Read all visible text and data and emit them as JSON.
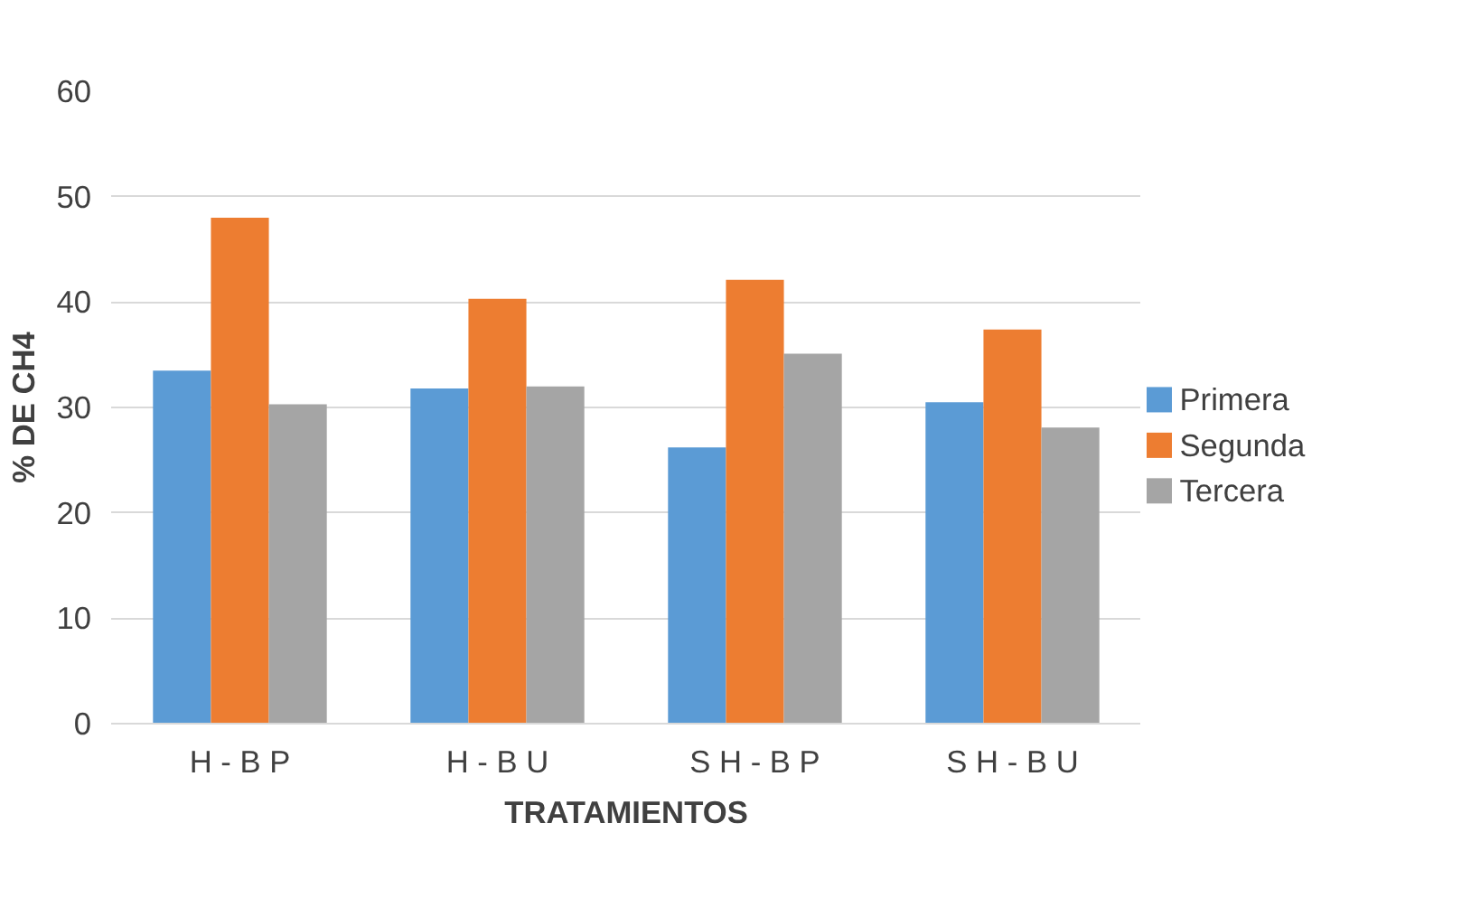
{
  "chart_data": {
    "type": "bar",
    "xlabel": "TRATAMIENTOS",
    "ylabel": "% DE CH4",
    "categories": [
      "H - B P",
      "H - B U",
      "S H - B P",
      "S H - B U"
    ],
    "series": [
      {
        "name": "Primera",
        "color": "#5b9bd5",
        "values": [
          33.5,
          31.8,
          26.2,
          30.5
        ]
      },
      {
        "name": "Segunda",
        "color": "#ed7d31",
        "values": [
          48.0,
          40.3,
          42.1,
          37.4
        ]
      },
      {
        "name": "Tercera",
        "color": "#a5a5a5",
        "values": [
          30.3,
          32.0,
          35.1,
          28.1
        ]
      }
    ],
    "ylim": [
      0,
      60
    ],
    "yticks": [
      0,
      10,
      20,
      30,
      40,
      50,
      60
    ],
    "grid": "y",
    "legend": "right"
  }
}
